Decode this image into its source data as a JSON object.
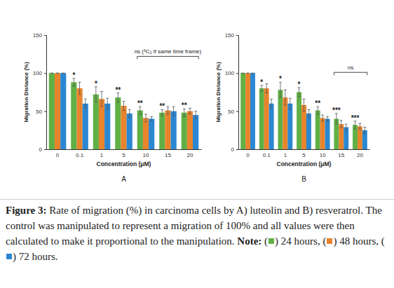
{
  "chart_data": [
    {
      "type": "bar",
      "title": "A",
      "x_label": "Concentration (μM)",
      "y_label": "Migration Distance (%)",
      "categories": [
        "0",
        "0.1",
        "1",
        "5",
        "10",
        "15",
        "20"
      ],
      "series": [
        {
          "name": "24 hours",
          "color": "#61b046",
          "values": [
            100,
            88,
            72,
            68,
            51,
            48,
            48
          ],
          "errors": [
            0,
            5,
            10,
            6,
            5,
            4,
            5
          ]
        },
        {
          "name": "48 hours",
          "color": "#e8842c",
          "values": [
            100,
            80,
            66,
            57,
            41,
            51,
            50
          ],
          "errors": [
            0,
            8,
            10,
            6,
            5,
            5,
            4
          ]
        },
        {
          "name": "72 hours",
          "color": "#2b87d1",
          "values": [
            100,
            60,
            60,
            47,
            40,
            50,
            45
          ],
          "errors": [
            0,
            6,
            7,
            5,
            3,
            6,
            5
          ]
        }
      ],
      "ylim": [
        0,
        150
      ],
      "yticks": [
        0,
        50,
        100,
        150
      ],
      "annotations": [
        {
          "text": "*",
          "category": "0.1"
        },
        {
          "text": "*",
          "category": "1"
        },
        {
          "text": "**",
          "category": "5"
        },
        {
          "text": "**",
          "category": "10"
        },
        {
          "text": "**",
          "category": "15"
        },
        {
          "text": "**",
          "category": "20"
        },
        {
          "text": "ns (³C₂ if same time frame)",
          "from": "10",
          "to": "20",
          "y": 122
        }
      ]
    },
    {
      "type": "bar",
      "title": "B",
      "x_label": "Concentration (μM)",
      "y_label": "Migration Distance (%)",
      "categories": [
        "0",
        "0.1",
        "1",
        "5",
        "10",
        "15",
        "20"
      ],
      "series": [
        {
          "name": "24 hours",
          "color": "#61b046",
          "values": [
            100,
            80,
            78,
            75,
            51,
            40,
            32
          ],
          "errors": [
            0,
            4,
            10,
            6,
            5,
            7,
            5
          ]
        },
        {
          "name": "48 hours",
          "color": "#e8842c",
          "values": [
            100,
            80,
            68,
            58,
            41,
            33,
            30
          ],
          "errors": [
            0,
            6,
            10,
            8,
            4,
            5,
            4
          ]
        },
        {
          "name": "72 hours",
          "color": "#2b87d1",
          "values": [
            100,
            60,
            60,
            47,
            40,
            29,
            25
          ],
          "errors": [
            0,
            6,
            7,
            5,
            3,
            4,
            4
          ]
        }
      ],
      "ylim": [
        0,
        150
      ],
      "yticks": [
        0,
        50,
        100,
        150
      ],
      "annotations": [
        {
          "text": "*",
          "category": "0.1"
        },
        {
          "text": "*",
          "category": "1"
        },
        {
          "text": "*",
          "category": "5"
        },
        {
          "text": "**",
          "category": "10"
        },
        {
          "text": "***",
          "category": "15"
        },
        {
          "text": "***",
          "category": "20"
        },
        {
          "text": "ns",
          "from": "15",
          "to": "20",
          "y": 101
        }
      ]
    }
  ],
  "caption": {
    "label": "Figure 3:",
    "text": "Rate of migration (%) in carcinoma cells by A) luteolin and B) resveratrol. The control was manipulated to represent a migration of 100% and all values were then calculated to make it proportional to the manipulation.",
    "note": {
      "label": "Note:",
      "marker_open": "(",
      "marker_close": ")",
      "separator": ",",
      "end": "."
    }
  }
}
